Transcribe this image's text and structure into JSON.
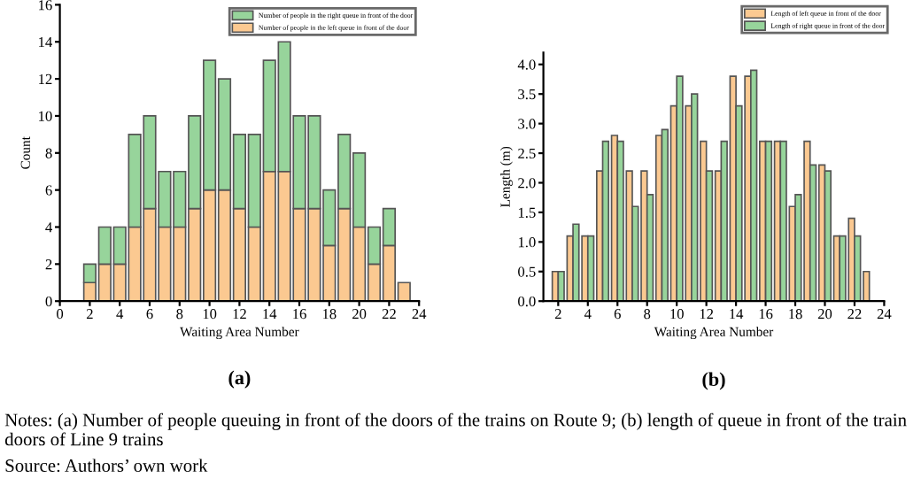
{
  "chart_data": [
    {
      "type": "bar",
      "title": "(a)",
      "xlabel": "Waiting Area Number",
      "ylabel": "Count",
      "stacked": true,
      "x": [
        2,
        3,
        4,
        5,
        6,
        7,
        8,
        9,
        10,
        11,
        12,
        13,
        14,
        15,
        16,
        17,
        18,
        19,
        20,
        21,
        22,
        23
      ],
      "series": [
        {
          "name": "Number of people in the left queue in front of the door",
          "color": "#fbc991",
          "values": [
            1,
            2,
            2,
            4,
            5,
            4,
            4,
            5,
            6,
            6,
            5,
            4,
            7,
            7,
            5,
            5,
            3,
            5,
            4,
            2,
            3,
            1
          ]
        },
        {
          "name": "Number of people in the right queue in front of the door",
          "color": "#97d49b",
          "values": [
            1,
            2,
            2,
            5,
            5,
            3,
            3,
            5,
            7,
            6,
            4,
            5,
            6,
            7,
            5,
            5,
            3,
            4,
            4,
            2,
            2,
            null
          ]
        }
      ],
      "xlim": [
        0,
        24
      ],
      "xticks": [
        0,
        2,
        4,
        6,
        8,
        10,
        12,
        14,
        16,
        18,
        20,
        22,
        24
      ],
      "ylim": [
        0,
        16
      ],
      "yticks": [
        0,
        2,
        4,
        6,
        8,
        10,
        12,
        14,
        16
      ],
      "legend": "top right",
      "grid": false,
      "annotations": [
        "Notes: (a) Number of people queuing in front of the doors of the trains on Route 9; (b) length of queue in front of the train doors of Line 9 trains",
        "Source: Authors’ own work"
      ]
    },
    {
      "type": "bar",
      "title": "(b)",
      "xlabel": "Waiting Area Number",
      "ylabel": "Length (m)",
      "x": [
        2,
        3,
        4,
        5,
        6,
        7,
        8,
        9,
        10,
        11,
        12,
        13,
        14,
        15,
        16,
        17,
        18,
        19,
        20,
        21,
        22,
        23
      ],
      "series": [
        {
          "name": "Length of left queue in front of the door",
          "color": "#fbc991",
          "values": [
            0.5,
            1.1,
            1.1,
            2.2,
            2.8,
            2.2,
            2.2,
            2.8,
            3.3,
            3.3,
            2.7,
            2.2,
            3.8,
            3.8,
            2.7,
            2.7,
            1.6,
            2.7,
            2.3,
            1.1,
            1.4,
            0.5
          ]
        },
        {
          "name": "Length of right queue in front of the door",
          "color": "#97d49b",
          "values": [
            0.5,
            1.3,
            1.1,
            2.7,
            2.7,
            1.6,
            1.8,
            2.9,
            3.8,
            3.5,
            2.2,
            2.7,
            3.3,
            3.9,
            2.7,
            2.7,
            1.8,
            2.3,
            2.2,
            1.1,
            1.1,
            null
          ]
        }
      ],
      "xlim": [
        1,
        24
      ],
      "xticks": [
        2,
        4,
        6,
        8,
        10,
        12,
        14,
        16,
        18,
        20,
        22,
        24
      ],
      "ylim": [
        0,
        4.2
      ],
      "yticks": [
        {
          "value": 0,
          "label": "0.0"
        },
        {
          "value": 0.5,
          "label": "0.5"
        },
        {
          "value": 1,
          "label": "1.0"
        },
        {
          "value": 1.5,
          "label": "1.5"
        },
        {
          "value": 2,
          "label": "2.0"
        },
        {
          "value": 2.5,
          "label": "2.5"
        },
        {
          "value": 3,
          "label": "3.0"
        },
        {
          "value": 3.5,
          "label": "3.5"
        },
        {
          "value": 4,
          "label": "4.0"
        }
      ],
      "legend": "top right",
      "grid": false
    }
  ]
}
